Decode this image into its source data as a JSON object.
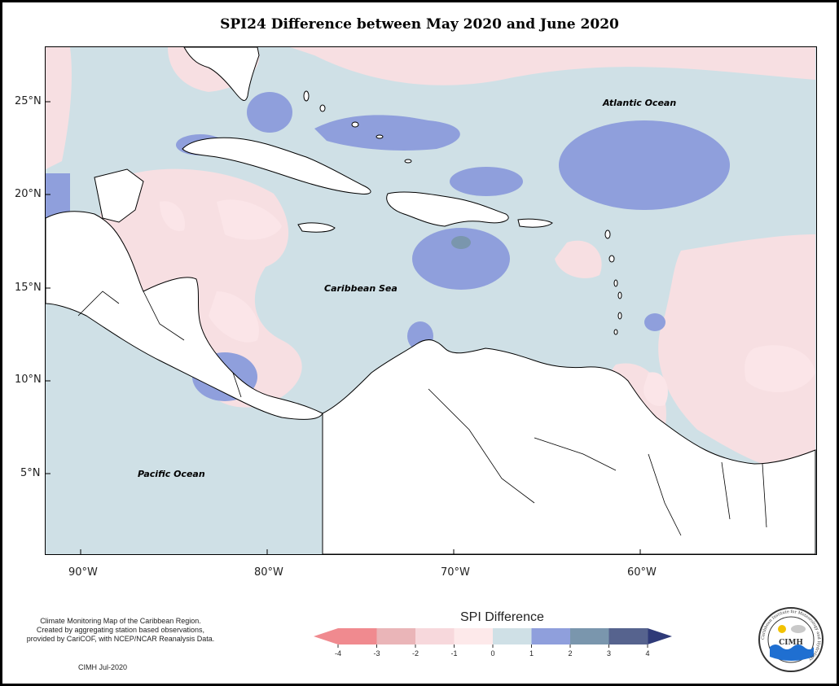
{
  "title": "SPI24 Difference between May 2020 and June 2020",
  "map": {
    "latitude_labels": [
      "25°N",
      "20°N",
      "15°N",
      "10°N",
      "5°N"
    ],
    "longitude_labels": [
      "90°W",
      "80°W",
      "70°W",
      "60°W"
    ],
    "place_labels": {
      "atlantic": "Atlantic Ocean",
      "caribbean": "Caribbean Sea",
      "pacific": "Pacific Ocean"
    }
  },
  "footnote": {
    "lines": [
      "Climate Monitoring Map of the Caribbean Region.",
      "Created by aggregating station based observations,",
      "provided by CariCOF, with NCEP/NCAR Reanalysis Data."
    ],
    "credit": "CIMH Jul-2020"
  },
  "legend": {
    "title": "SPI Difference",
    "tick_labels": [
      "-4",
      "-3",
      "-2",
      "-1",
      "0",
      "1",
      "2",
      "3",
      "4"
    ],
    "colors": [
      "#f08a8f",
      "#eab5b8",
      "#f7d8dc",
      "#fde9ea",
      "#cfe0e6",
      "#8f9fdc",
      "#7a96ad",
      "#56638e"
    ],
    "colors_note": "lowest to highest bins"
  },
  "logo": {
    "text": "CIMH",
    "ring_text": "Caribbean Institute for Meteorology and Hydrology"
  },
  "colors": {
    "background_neutral": "#cfe0e6",
    "land": "#ffffff",
    "dry_pink": "#f7dfe2",
    "wet_blue": "#8f9fdc",
    "wet_dark": "#7a96ad"
  }
}
